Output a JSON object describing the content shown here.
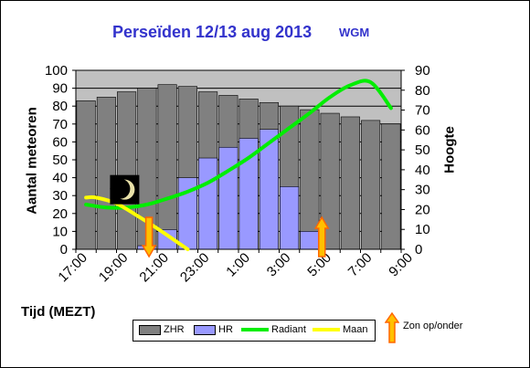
{
  "title": "Perseïden 12/13 aug 2013",
  "tag": "WGM",
  "chart_data": {
    "type": "bar",
    "x_tick_labels": [
      "17:00",
      "19:00",
      "21:00",
      "23:00",
      "1:00",
      "3:00",
      "5:00",
      "7:00",
      "9:00"
    ],
    "xlabel": "Tijd (MEZT)",
    "ylabel": "Aantal meteoren",
    "y2label": "Hoogte",
    "ylim": [
      0,
      100
    ],
    "y2lim": [
      0,
      90
    ],
    "y_ticks": [
      0,
      10,
      20,
      30,
      40,
      50,
      60,
      70,
      80,
      90,
      100
    ],
    "y2_ticks": [
      0,
      10,
      20,
      30,
      40,
      50,
      60,
      70,
      80,
      90
    ],
    "grid": true,
    "series": [
      {
        "name": "ZHR",
        "kind": "bar",
        "color": "#808080",
        "values": [
          83,
          85,
          88,
          90,
          92,
          91,
          88,
          86,
          84,
          82,
          80,
          78,
          76,
          74,
          72,
          70
        ]
      },
      {
        "name": "HR",
        "kind": "bar",
        "color": "#9999ff",
        "values": [
          0,
          0,
          0,
          2,
          11,
          40,
          51,
          57,
          62,
          67,
          35,
          10,
          0,
          0,
          0,
          0
        ]
      },
      {
        "name": "Radiant",
        "kind": "line",
        "axis": "right",
        "color": "#00ee00",
        "x": [
          0,
          1,
          2,
          3,
          4,
          5,
          6,
          7,
          8,
          9,
          10,
          11,
          12,
          13,
          14,
          15
        ],
        "y": [
          22.5,
          21,
          21,
          22.5,
          25.5,
          29,
          33.5,
          39.5,
          46,
          53.5,
          61,
          68.5,
          76.5,
          82.5,
          84,
          71
        ]
      },
      {
        "name": "Maan",
        "kind": "line",
        "axis": "right",
        "color": "#ffff00",
        "x": [
          0,
          0.5,
          1.5,
          2.5,
          3.5,
          4.5,
          5
        ],
        "y": [
          26,
          26,
          23,
          17,
          10.5,
          3.5,
          0
        ]
      }
    ],
    "events": [
      {
        "type": "moon",
        "x": 1.9,
        "y2": 30
      },
      {
        "type": "sun",
        "direction": "down",
        "x": 3.1
      },
      {
        "type": "sun",
        "direction": "up",
        "x": 11.6
      }
    ],
    "legend": [
      "ZHR",
      "HR",
      "Radiant",
      "Maan"
    ],
    "legend_position": "bottom"
  },
  "sun_legend": "Zon op/onder",
  "colors": {
    "plot_background": "#c0c0c0",
    "title": "#3333cc",
    "arrow_fill": "#ffc000",
    "arrow_edge": "#ff6600"
  }
}
